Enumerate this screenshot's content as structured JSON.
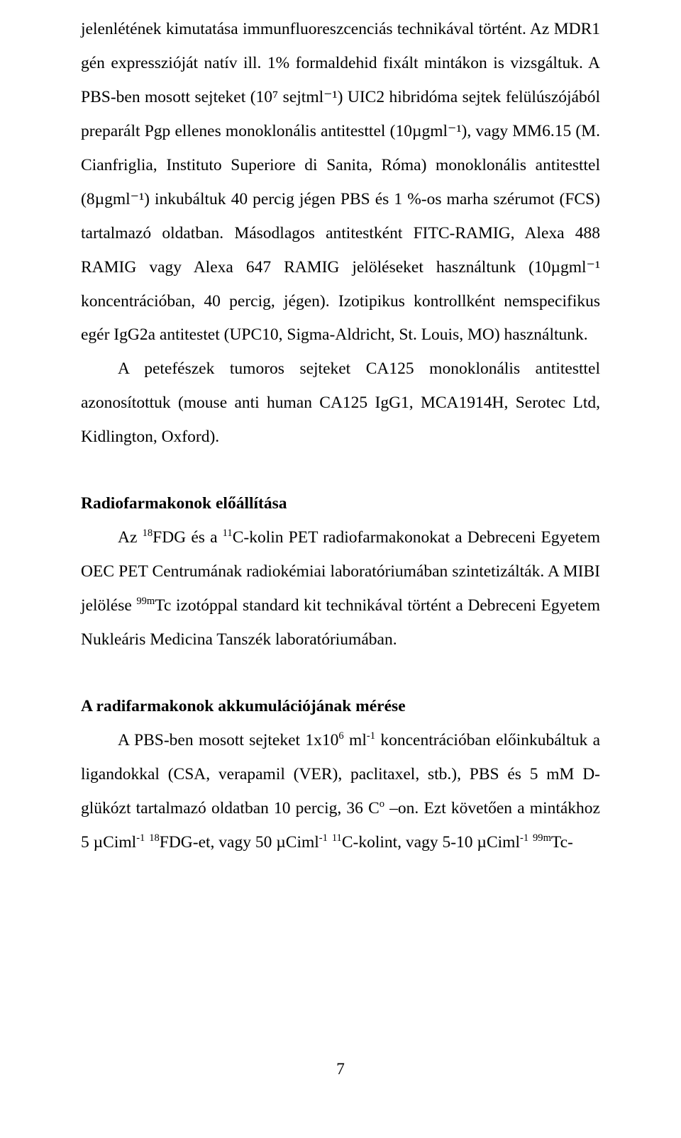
{
  "para1": "jelenlétének kimutatása immunfluoreszcenciás technikával történt. Az MDR1 gén expresszióját natív ill. 1% formaldehid fixált mintákon is vizsgáltuk. A PBS-ben mosott sejteket (10⁷ sejtml⁻¹) UIC2 hibridóma sejtek felülúszójából preparált Pgp ellenes monoklonális antitesttel (10µgml⁻¹), vagy MM6.15 (M. Cianfriglia, Instituto Superiore di Sanita, Róma) monoklonális antitesttel (8µgml⁻¹) inkubáltuk 40 percig jégen PBS és 1 %-os marha szérumot (FCS) tartalmazó oldatban. Másodlagos antitestként FITC-RAMIG, Alexa 488 RAMIG vagy Alexa 647 RAMIG jelöléseket használtunk (10µgml⁻¹ koncentrációban, 40 percig, jégen). Izotipikus kontrollként nemspecifikus egér IgG2a antitestet (UPC10, Sigma-Aldricht, St. Louis, MO) használtunk.",
  "para2": "A petefészek tumoros sejteket CA125 monoklonális antitesttel azonosítottuk (mouse anti human CA125 IgG1, MCA1914H, Serotec Ltd, Kidlington, Oxford).",
  "heading1": "Radiofarmakonok előállítása",
  "para3_a": "Az ",
  "para3_b": "FDG és a ",
  "para3_c": "C-kolin PET radiofarmakonokat a Debreceni Egyetem OEC PET Centrumának radiokémiai laboratóriumában szintetizálták. A MIBI jelölése ",
  "para3_d": "Tc izotóppal standard kit technikával történt a Debreceni Egyetem Nukleáris Medicina Tanszék laboratóriumában.",
  "heading2": "A radifarmakonok akkumulációjának mérése",
  "para4_a": "A PBS-ben mosott sejteket 1x10",
  "para4_b": " ml",
  "para4_c": " koncentrációban előinkubáltuk a ligandokkal (CSA, verapamil (VER), paclitaxel, stb.), PBS és 5 mM D-glükózt tartalmazó oldatban 10 percig, 36 C",
  "para4_d": " –on. Ezt követően a mintákhoz 5 µCiml",
  "para4_e": " ",
  "para4_f": "FDG-et, vagy 50 µCiml",
  "para4_g": " ",
  "para4_h": "C-kolint, vagy 5-10 µCiml",
  "para4_i": " ",
  "para4_j": "Tc-",
  "sup18": "18",
  "sup11": "11",
  "sup99m": "99m",
  "sup6": "6",
  "supm1": "-1",
  "supo": "o",
  "pagenum": "7"
}
